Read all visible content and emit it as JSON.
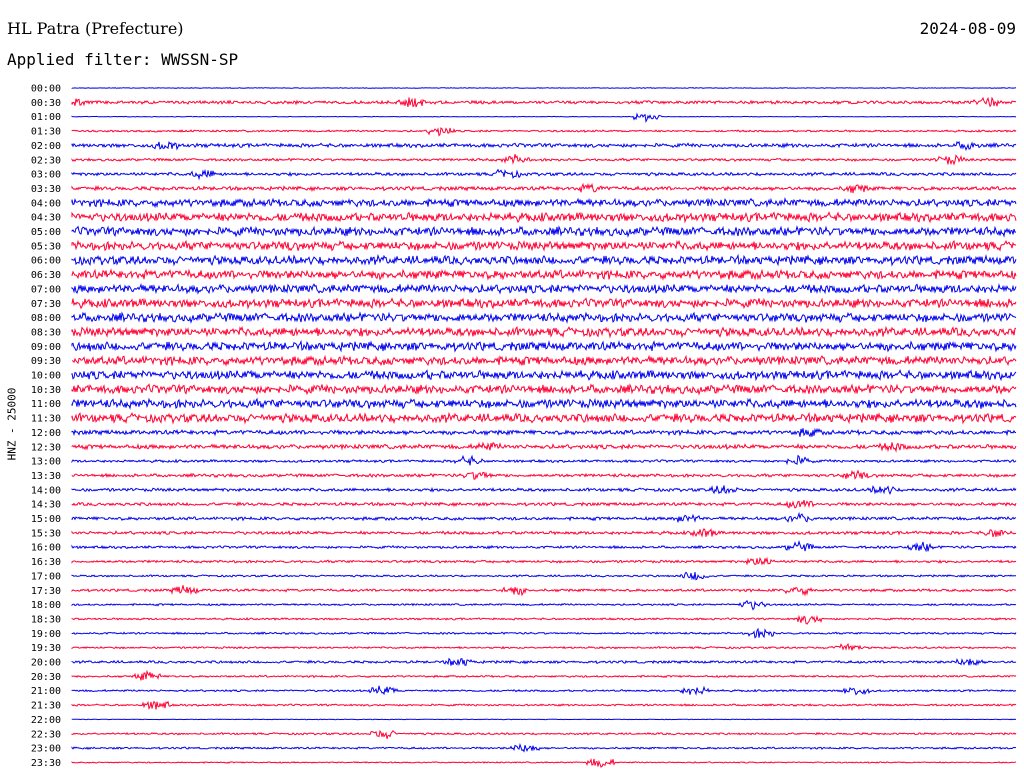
{
  "header": {
    "station": "HL Patra (Prefecture)",
    "date": "2024-08-09",
    "filter": "Applied filter: WWSSN-SP",
    "channel": "HNZ - 25000"
  },
  "colors": {
    "blue_trace": "#0000ee",
    "red_trace": "#ff0033"
  },
  "chart_data": {
    "type": "line",
    "title": "HL Patra (Prefecture)",
    "subtitle": "Applied filter: WWSSN-SP",
    "ylabel": "HNZ - 25000",
    "grid": false,
    "series": [
      {
        "time": "00:00",
        "color": "blue",
        "amplitude": 0.05,
        "bursts": []
      },
      {
        "time": "00:30",
        "color": "red",
        "amplitude": 0.25,
        "bursts": [
          0.0,
          0.36,
          0.97
        ]
      },
      {
        "time": "01:00",
        "color": "blue",
        "amplitude": 0.05,
        "bursts": [
          0.61
        ]
      },
      {
        "time": "01:30",
        "color": "red",
        "amplitude": 0.15,
        "bursts": [
          0.39
        ]
      },
      {
        "time": "02:00",
        "color": "blue",
        "amplitude": 0.3,
        "bursts": [
          0.1,
          0.95
        ]
      },
      {
        "time": "02:30",
        "color": "red",
        "amplitude": 0.2,
        "bursts": [
          0.47,
          0.93
        ]
      },
      {
        "time": "03:00",
        "color": "blue",
        "amplitude": 0.25,
        "bursts": [
          0.14,
          0.46
        ]
      },
      {
        "time": "03:30",
        "color": "red",
        "amplitude": 0.3,
        "bursts": [
          0.55,
          0.83
        ]
      },
      {
        "time": "04:00",
        "color": "blue",
        "amplitude": 0.6,
        "bursts": []
      },
      {
        "time": "04:30",
        "color": "red",
        "amplitude": 0.7,
        "bursts": [
          0.75
        ]
      },
      {
        "time": "05:00",
        "color": "blue",
        "amplitude": 0.7,
        "bursts": []
      },
      {
        "time": "05:30",
        "color": "red",
        "amplitude": 0.7,
        "bursts": [
          0.23
        ]
      },
      {
        "time": "06:00",
        "color": "blue",
        "amplitude": 0.7,
        "bursts": []
      },
      {
        "time": "06:30",
        "color": "red",
        "amplitude": 0.7,
        "bursts": []
      },
      {
        "time": "07:00",
        "color": "blue",
        "amplitude": 0.7,
        "bursts": [
          0.94
        ]
      },
      {
        "time": "07:30",
        "color": "red",
        "amplitude": 0.7,
        "bursts": [
          0.97
        ]
      },
      {
        "time": "08:00",
        "color": "blue",
        "amplitude": 0.7,
        "bursts": [
          0.41
        ]
      },
      {
        "time": "08:30",
        "color": "red",
        "amplitude": 0.7,
        "bursts": [
          0.23
        ]
      },
      {
        "time": "09:00",
        "color": "blue",
        "amplitude": 0.7,
        "bursts": [
          0.02
        ]
      },
      {
        "time": "09:30",
        "color": "red",
        "amplitude": 0.7,
        "bursts": []
      },
      {
        "time": "10:00",
        "color": "blue",
        "amplitude": 0.7,
        "bursts": [
          0.19,
          0.38
        ]
      },
      {
        "time": "10:30",
        "color": "red",
        "amplitude": 0.7,
        "bursts": [
          0.98
        ]
      },
      {
        "time": "11:00",
        "color": "blue",
        "amplitude": 0.7,
        "bursts": [
          0.96
        ]
      },
      {
        "time": "11:30",
        "color": "red",
        "amplitude": 0.7,
        "bursts": []
      },
      {
        "time": "12:00",
        "color": "blue",
        "amplitude": 0.35,
        "bursts": [
          0.78
        ]
      },
      {
        "time": "12:30",
        "color": "red",
        "amplitude": 0.35,
        "bursts": [
          0.44,
          0.87
        ]
      },
      {
        "time": "13:00",
        "color": "blue",
        "amplitude": 0.2,
        "bursts": [
          0.42,
          0.77
        ]
      },
      {
        "time": "13:30",
        "color": "red",
        "amplitude": 0.25,
        "bursts": [
          0.43,
          0.83
        ]
      },
      {
        "time": "14:00",
        "color": "blue",
        "amplitude": 0.25,
        "bursts": [
          0.69,
          0.86
        ]
      },
      {
        "time": "14:30",
        "color": "red",
        "amplitude": 0.25,
        "bursts": [
          0.77
        ]
      },
      {
        "time": "15:00",
        "color": "blue",
        "amplitude": 0.25,
        "bursts": [
          0.65,
          0.77
        ]
      },
      {
        "time": "15:30",
        "color": "red",
        "amplitude": 0.25,
        "bursts": [
          0.67,
          0.98
        ]
      },
      {
        "time": "16:00",
        "color": "blue",
        "amplitude": 0.2,
        "bursts": [
          0.77,
          0.9
        ]
      },
      {
        "time": "16:30",
        "color": "red",
        "amplitude": 0.2,
        "bursts": [
          0.73
        ]
      },
      {
        "time": "17:00",
        "color": "blue",
        "amplitude": 0.15,
        "bursts": [
          0.66
        ]
      },
      {
        "time": "17:30",
        "color": "red",
        "amplitude": 0.2,
        "bursts": [
          0.12,
          0.47,
          0.77
        ]
      },
      {
        "time": "18:00",
        "color": "blue",
        "amplitude": 0.15,
        "bursts": [
          0.72
        ]
      },
      {
        "time": "18:30",
        "color": "red",
        "amplitude": 0.15,
        "bursts": [
          0.78
        ]
      },
      {
        "time": "19:00",
        "color": "blue",
        "amplitude": 0.15,
        "bursts": [
          0.73
        ]
      },
      {
        "time": "19:30",
        "color": "red",
        "amplitude": 0.15,
        "bursts": [
          0.82
        ]
      },
      {
        "time": "20:00",
        "color": "blue",
        "amplitude": 0.2,
        "bursts": [
          0.41,
          0.95
        ]
      },
      {
        "time": "20:30",
        "color": "red",
        "amplitude": 0.15,
        "bursts": [
          0.08
        ]
      },
      {
        "time": "21:00",
        "color": "blue",
        "amplitude": 0.15,
        "bursts": [
          0.33,
          0.66,
          0.83
        ]
      },
      {
        "time": "21:30",
        "color": "red",
        "amplitude": 0.15,
        "bursts": [
          0.09
        ]
      },
      {
        "time": "22:00",
        "color": "blue",
        "amplitude": 0.05,
        "bursts": []
      },
      {
        "time": "22:30",
        "color": "red",
        "amplitude": 0.15,
        "bursts": [
          0.33
        ]
      },
      {
        "time": "23:00",
        "color": "blue",
        "amplitude": 0.15,
        "bursts": [
          0.48
        ]
      },
      {
        "time": "23:30",
        "color": "red",
        "amplitude": 0.1,
        "bursts": [
          0.56
        ]
      }
    ]
  }
}
